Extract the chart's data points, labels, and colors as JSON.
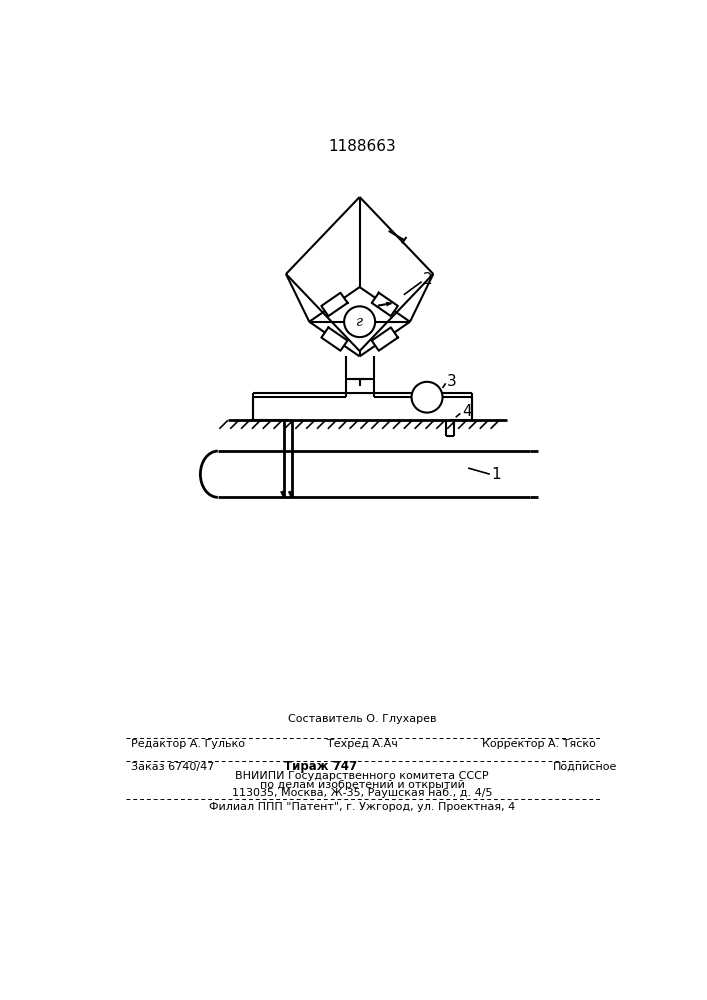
{
  "title": "1188663",
  "title_fontsize": 11,
  "bg_color": "#ffffff",
  "line_color": "#000000",
  "label_1": "1",
  "label_2": "2",
  "label_3": "3",
  "label_4": "4",
  "galv_label": "г",
  "footer_line1_center": "Составитель О. Глухарев",
  "footer_line1_left": "Редактор А. Гулько",
  "footer_line1_center2": "Техред А.Ач",
  "footer_line1_right": "Корректор А. Тяско",
  "footer_line2_left": "Заказ 6740/47",
  "footer_line2_center": "Тираж 747",
  "footer_line2_right": "Подписное",
  "footer_line3": "ВНИИПИ Государственного комитета СССР",
  "footer_line4": "по делам изобретений и открытий",
  "footer_line5": "113035, Москва, Ж-35, Раушская наб., д. 4/5",
  "footer_line6": "Филиал ППП \"Патент\", г. Ужгород, ул. Проектная, 4"
}
